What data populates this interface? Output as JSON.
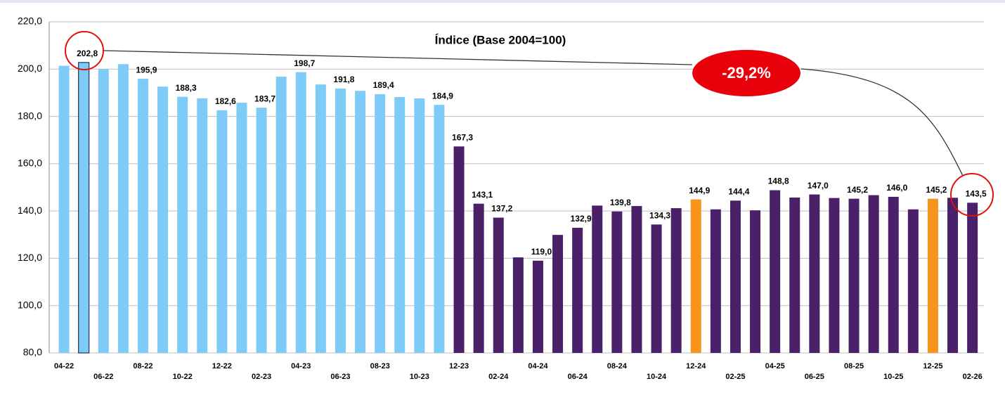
{
  "chart_data": {
    "type": "bar",
    "title": "Índice (Base 2004=100)",
    "annotation": "-29,2%",
    "categories": [
      "04-22",
      null,
      "06-22",
      null,
      "08-22",
      null,
      "10-22",
      null,
      "12-22",
      null,
      "02-23",
      null,
      "04-23",
      null,
      "06-23",
      null,
      "08-23",
      null,
      "10-23",
      null,
      "12-23",
      null,
      "02-24",
      null,
      "04-24",
      null,
      "06-24",
      null,
      "08-24",
      null,
      "10-24",
      null,
      "12-24",
      null,
      "02-25",
      null,
      "04-25",
      null,
      "06-25",
      null,
      "08-25",
      null,
      "10-25",
      null,
      "12-25",
      null,
      "02-26"
    ],
    "values": [
      201.4,
      202.8,
      200.0,
      202.1,
      195.9,
      192.6,
      188.3,
      187.6,
      182.6,
      185.8,
      183.7,
      196.8,
      198.7,
      193.5,
      191.8,
      190.8,
      189.4,
      188.2,
      187.6,
      184.9,
      167.3,
      143.1,
      137.2,
      120.4,
      119.0,
      129.9,
      132.9,
      142.3,
      139.8,
      142.1,
      134.3,
      141.2,
      144.9,
      140.7,
      144.4,
      140.3,
      148.8,
      145.7,
      147.0,
      145.5,
      145.2,
      146.7,
      146.0,
      140.7,
      145.2,
      145.6,
      143.5
    ],
    "value_labels": [
      null,
      "202,8",
      null,
      null,
      "195,9",
      null,
      "188,3",
      null,
      "182,6",
      null,
      "183,7",
      null,
      "198,7",
      null,
      "191,8",
      null,
      "189,4",
      null,
      null,
      "184,9",
      "167,3",
      "143,1",
      "137,2",
      null,
      "119,0",
      null,
      "132,9",
      null,
      "139,8",
      null,
      "134,3",
      null,
      "144,9",
      null,
      "144,4",
      null,
      "148,8",
      null,
      "147,0",
      null,
      "145,2",
      null,
      "146,0",
      null,
      "145,2",
      null,
      "143,5"
    ],
    "colors": [
      "#7fcbf7",
      "#7fcbf7",
      "#7fcbf7",
      "#7fcbf7",
      "#7fcbf7",
      "#7fcbf7",
      "#7fcbf7",
      "#7fcbf7",
      "#7fcbf7",
      "#7fcbf7",
      "#7fcbf7",
      "#7fcbf7",
      "#7fcbf7",
      "#7fcbf7",
      "#7fcbf7",
      "#7fcbf7",
      "#7fcbf7",
      "#7fcbf7",
      "#7fcbf7",
      "#7fcbf7",
      "#4a2069",
      "#4a2069",
      "#4a2069",
      "#4a2069",
      "#4a2069",
      "#4a2069",
      "#4a2069",
      "#4a2069",
      "#4a2069",
      "#4a2069",
      "#4a2069",
      "#4a2069",
      "#f7941d",
      "#4a2069",
      "#4a2069",
      "#4a2069",
      "#4a2069",
      "#4a2069",
      "#4a2069",
      "#4a2069",
      "#4a2069",
      "#4a2069",
      "#4a2069",
      "#4a2069",
      "#f7941d",
      "#4a2069",
      "#4a2069"
    ],
    "edge_colors": [
      null,
      "#1f3550",
      null,
      null,
      null,
      null,
      null,
      null,
      null,
      null,
      null,
      null,
      null,
      null,
      null,
      null,
      null,
      null,
      null,
      null,
      null,
      null,
      null,
      null,
      null,
      null,
      null,
      null,
      null,
      null,
      null,
      null,
      null,
      null,
      null,
      null,
      null,
      null,
      null,
      null,
      null,
      null,
      null,
      null,
      null,
      null,
      null
    ],
    "ylim": [
      80,
      220
    ],
    "yticks": [
      {
        "value": 80,
        "label": "80,0"
      },
      {
        "value": 100,
        "label": "100,0"
      },
      {
        "value": 120,
        "label": "120,0"
      },
      {
        "value": 140,
        "label": "140,0"
      },
      {
        "value": 160,
        "label": "160,0"
      },
      {
        "value": 180,
        "label": "180,0"
      },
      {
        "value": 200,
        "label": "200,0"
      },
      {
        "value": 220,
        "label": "220,0"
      }
    ],
    "grid": true
  }
}
